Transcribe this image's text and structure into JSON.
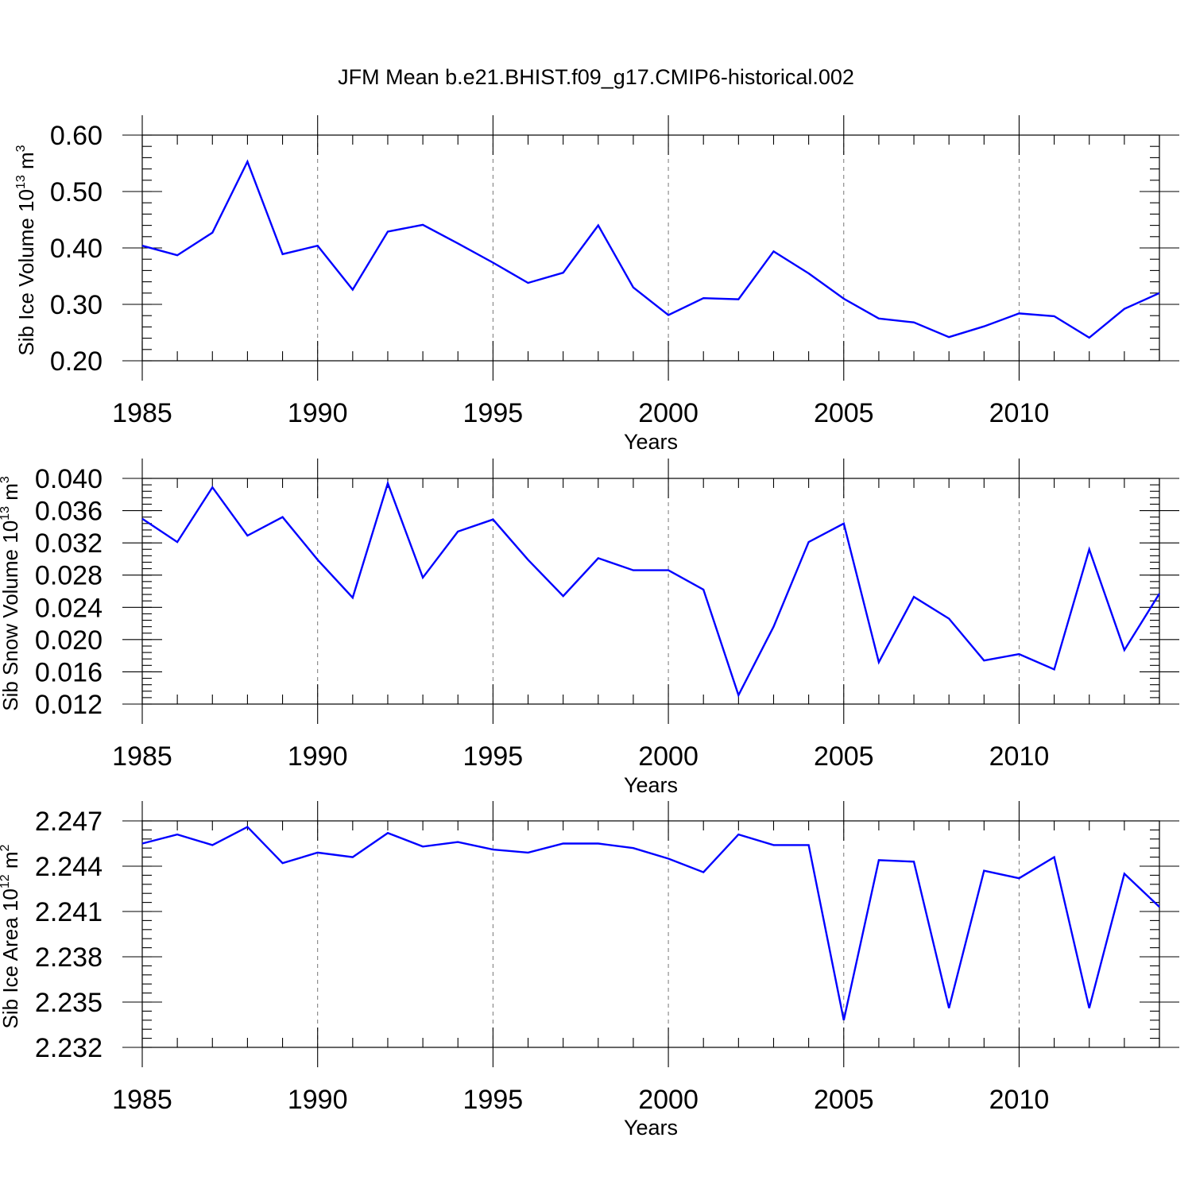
{
  "figure": {
    "title": "JFM Mean b.e21.BHIST.f09_g17.CMIP6-historical.002",
    "line_color": "#0000ff"
  },
  "chart_data": [
    {
      "type": "line",
      "title": "JFM Mean b.e21.BHIST.f09_g17.CMIP6-historical.002",
      "xlabel": "Years",
      "ylabel": {
        "main": "Sib Ice Volume 10",
        "sup": "13",
        "unit": " m",
        "unit_sup": "3"
      },
      "xlim": [
        1985,
        2014
      ],
      "ylim": [
        0.2,
        0.6
      ],
      "x_ticks": [
        1985,
        1990,
        1995,
        2000,
        2005,
        2010
      ],
      "x_tick_labels": [
        "1985",
        "1990",
        "1995",
        "2000",
        "2005",
        "2010"
      ],
      "y_ticks": [
        0.2,
        0.3,
        0.4,
        0.5,
        0.6
      ],
      "y_tick_labels": [
        "0.20",
        "0.30",
        "0.40",
        "0.50",
        "0.60"
      ],
      "y_minor_step": 0.02,
      "x": [
        1985,
        1986,
        1987,
        1988,
        1989,
        1990,
        1991,
        1992,
        1993,
        1994,
        1995,
        1996,
        1997,
        1998,
        1999,
        2000,
        2001,
        2002,
        2003,
        2004,
        2005,
        2006,
        2007,
        2008,
        2009,
        2010,
        2011,
        2012,
        2013,
        2014
      ],
      "values": [
        0.404,
        0.387,
        0.427,
        0.553,
        0.389,
        0.404,
        0.326,
        0.429,
        0.441,
        0.408,
        0.374,
        0.338,
        0.356,
        0.44,
        0.33,
        0.281,
        0.311,
        0.309,
        0.394,
        0.355,
        0.31,
        0.275,
        0.268,
        0.242,
        0.261,
        0.284,
        0.279,
        0.241,
        0.292,
        0.32
      ],
      "grid": "vertical dashed at major x ticks"
    },
    {
      "type": "line",
      "xlabel": "Years",
      "ylabel": {
        "main": "Sib Snow Volume 10",
        "sup": "13",
        "unit": " m",
        "unit_sup": "3"
      },
      "xlim": [
        1985,
        2014
      ],
      "ylim": [
        0.012,
        0.04
      ],
      "x_ticks": [
        1985,
        1990,
        1995,
        2000,
        2005,
        2010
      ],
      "x_tick_labels": [
        "1985",
        "1990",
        "1995",
        "2000",
        "2005",
        "2010"
      ],
      "y_ticks": [
        0.012,
        0.016,
        0.02,
        0.024,
        0.028,
        0.032,
        0.036,
        0.04
      ],
      "y_tick_labels": [
        "0.012",
        "0.016",
        "0.020",
        "0.024",
        "0.028",
        "0.032",
        "0.036",
        "0.040"
      ],
      "y_minor_step": 0.0008,
      "x": [
        1985,
        1986,
        1987,
        1988,
        1989,
        1990,
        1991,
        1992,
        1993,
        1994,
        1995,
        1996,
        1997,
        1998,
        1999,
        2000,
        2001,
        2002,
        2003,
        2004,
        2005,
        2006,
        2007,
        2008,
        2009,
        2010,
        2011,
        2012,
        2013,
        2014
      ],
      "values": [
        0.035,
        0.0321,
        0.0389,
        0.0329,
        0.0352,
        0.0299,
        0.0252,
        0.0394,
        0.0277,
        0.0334,
        0.0349,
        0.0299,
        0.0254,
        0.0301,
        0.0286,
        0.0286,
        0.0262,
        0.0131,
        0.0216,
        0.0321,
        0.0344,
        0.0172,
        0.0253,
        0.0226,
        0.0174,
        0.0182,
        0.0163,
        0.0312,
        0.0187,
        0.0257
      ],
      "grid": "vertical dashed at major x ticks"
    },
    {
      "type": "line",
      "xlabel": "Years",
      "ylabel": {
        "main": "Sib Ice Area 10",
        "sup": "12",
        "unit": " m",
        "unit_sup": "2"
      },
      "xlim": [
        1985,
        2014
      ],
      "ylim": [
        2.232,
        2.247
      ],
      "x_ticks": [
        1985,
        1990,
        1995,
        2000,
        2005,
        2010
      ],
      "x_tick_labels": [
        "1985",
        "1990",
        "1995",
        "2000",
        "2005",
        "2010"
      ],
      "y_ticks": [
        2.232,
        2.235,
        2.238,
        2.241,
        2.244,
        2.247
      ],
      "y_tick_labels": [
        "2.232",
        "2.235",
        "2.238",
        "2.241",
        "2.244",
        "2.247"
      ],
      "y_minor_step": 0.0006,
      "x": [
        1985,
        1986,
        1987,
        1988,
        1989,
        1990,
        1991,
        1992,
        1993,
        1994,
        1995,
        1996,
        1997,
        1998,
        1999,
        2000,
        2001,
        2002,
        2003,
        2004,
        2005,
        2006,
        2007,
        2008,
        2009,
        2010,
        2011,
        2012,
        2013,
        2014
      ],
      "values": [
        2.2455,
        2.2461,
        2.2454,
        2.2466,
        2.2442,
        2.2449,
        2.2446,
        2.2462,
        2.2453,
        2.2456,
        2.2451,
        2.2449,
        2.2455,
        2.2455,
        2.2452,
        2.2445,
        2.2436,
        2.2461,
        2.2454,
        2.2454,
        2.2338,
        2.2444,
        2.2443,
        2.2346,
        2.2437,
        2.2432,
        2.2446,
        2.2346,
        2.2435,
        2.2413
      ],
      "grid": "vertical dashed at major x ticks"
    }
  ]
}
